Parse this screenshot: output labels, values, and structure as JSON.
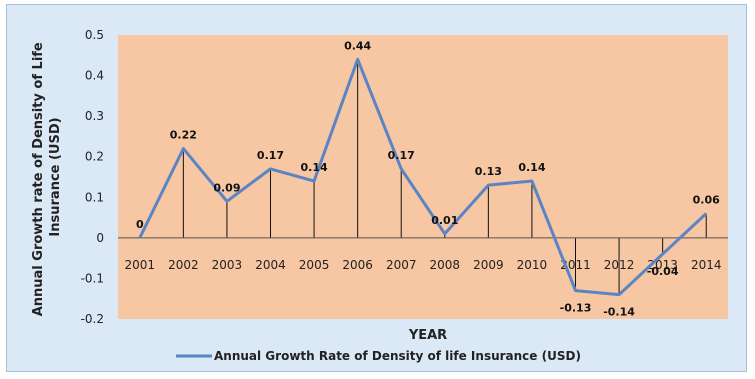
{
  "chart_data": {
    "type": "line",
    "title": "",
    "xlabel": "YEAR",
    "ylabel": "Annual Growth rate of Density of Life Insurance (USD)",
    "ylabel_lines": [
      "Annual Growth rate of Density of Life",
      "Insurance (USD)"
    ],
    "ylim": [
      -0.2,
      0.5
    ],
    "yticks": [
      -0.2,
      -0.1,
      0,
      0.1,
      0.2,
      0.3,
      0.4,
      0.5
    ],
    "ytick_labels": [
      "-0.2",
      "-0.1",
      "0",
      "0.1",
      "0.2",
      "0.3",
      "0.4",
      "0.5"
    ],
    "grid": false,
    "legend_position": "bottom",
    "categories": [
      "2001",
      "2002",
      "2003",
      "2004",
      "2005",
      "2006",
      "2007",
      "2008",
      "2009",
      "2010",
      "2011",
      "2012",
      "2013",
      "2014"
    ],
    "series": [
      {
        "name": "Annual Growth Rate of Density of life Insurance (USD)",
        "values": [
          0,
          0.22,
          0.09,
          0.17,
          0.14,
          0.44,
          0.17,
          0.01,
          0.13,
          0.14,
          -0.13,
          -0.14,
          -0.04,
          0.06
        ],
        "labels": [
          "0",
          "0.22",
          "0.09",
          "0.17",
          "0.14",
          "0.44",
          "0.17",
          "0.01",
          "0.13",
          "0.14",
          "-0.13",
          "-0.14",
          "-0.04",
          "0.06"
        ],
        "color": "#5b84c4"
      }
    ],
    "plot_background": "#f6c7a2",
    "drop_line_color": "#111111"
  }
}
